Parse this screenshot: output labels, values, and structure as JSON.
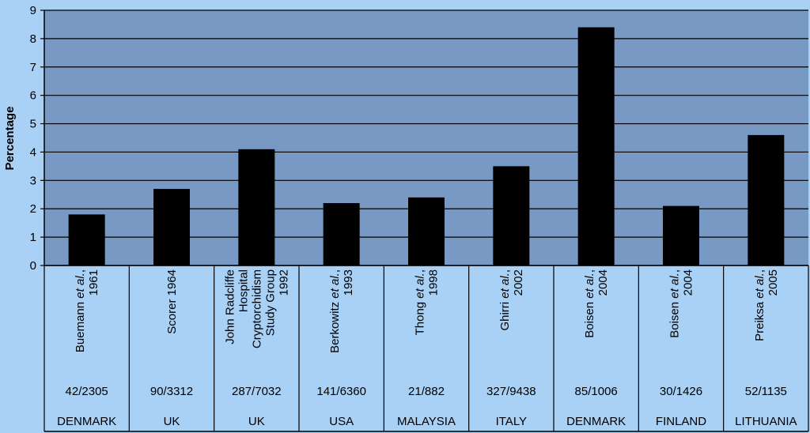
{
  "colors": {
    "background": "#a9d0f5",
    "plot_area": "#7799c4",
    "bar": "#000000",
    "gridline": "#000000"
  },
  "chart_data": {
    "type": "bar",
    "ylabel": "Percentage",
    "ylim": [
      0,
      9
    ],
    "yticks": [
      "0",
      "1",
      "2",
      "3",
      "4",
      "5",
      "6",
      "7",
      "8",
      "9"
    ],
    "grid": true,
    "categories": [
      {
        "study": [
          "Buemann ",
          "et al.",
          ","
        ],
        "year": "1961",
        "cases": "42/2305",
        "country": "DENMARK",
        "value": 1.8
      },
      {
        "study": [
          "Scorer 1964"
        ],
        "year": "",
        "cases": "90/3312",
        "country": "UK",
        "value": 2.7
      },
      {
        "study": [
          "John Radcliffe",
          "Hospital",
          "Cryptorchidism",
          "Study Group",
          "1992"
        ],
        "year": "",
        "cases": "287/7032",
        "country": "UK",
        "value": 4.1,
        "multiline": true
      },
      {
        "study": [
          "Berkowitz ",
          "et al.",
          ","
        ],
        "year": "1993",
        "cases": "141/6360",
        "country": "USA",
        "value": 2.2
      },
      {
        "study": [
          "Thong ",
          "et al.",
          ","
        ],
        "year": "1998",
        "cases": "21/882",
        "country": "MALAYSIA",
        "value": 2.4
      },
      {
        "study": [
          "Ghirri ",
          "et al.",
          ","
        ],
        "year": "2002",
        "cases": "327/9438",
        "country": "ITALY",
        "value": 3.5
      },
      {
        "study": [
          "Boisen ",
          "et al.",
          ","
        ],
        "year": "2004",
        "cases": "85/1006",
        "country": "DENMARK",
        "value": 8.4
      },
      {
        "study": [
          "Boisen ",
          "et al.",
          ","
        ],
        "year": "2004",
        "cases": "30/1426",
        "country": "FINLAND",
        "value": 2.1
      },
      {
        "study": [
          "Preiksa ",
          "et al.",
          ","
        ],
        "year": "2005",
        "cases": "52/1135",
        "country": "LITHUANIA",
        "value": 4.6
      }
    ]
  }
}
